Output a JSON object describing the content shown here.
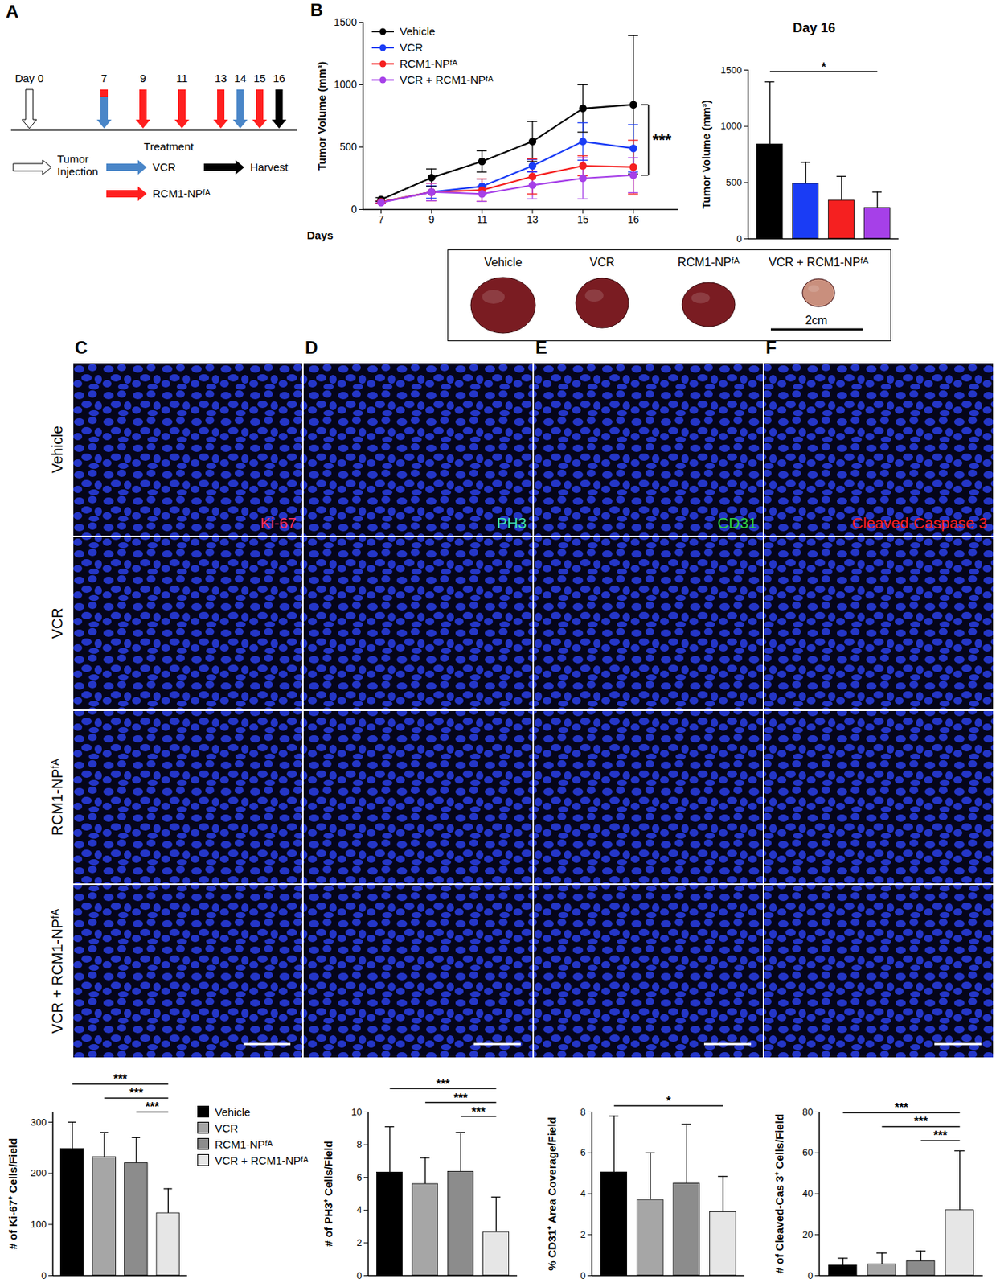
{
  "chart_data": [
    {
      "type": "line",
      "panel": "B",
      "x_label": "Days",
      "y_label": "Tumor Volume (mm³)",
      "categories": [
        7,
        9,
        11,
        13,
        15,
        16
      ],
      "ylim": [
        0,
        1500
      ],
      "yticks": [
        0,
        500,
        1000,
        1500
      ],
      "legend": "top-left",
      "series": [
        {
          "name": "Vehicle",
          "color": "#000000",
          "marker": "circle",
          "values": [
            80,
            255,
            385,
            545,
            810,
            840
          ],
          "errors": [
            15,
            70,
            85,
            160,
            190,
            555
          ]
        },
        {
          "name": "VCR",
          "color": "#1a3cf5",
          "marker": "circle",
          "values": [
            60,
            140,
            185,
            350,
            545,
            490
          ],
          "errors": [
            8,
            50,
            60,
            50,
            150,
            190
          ]
        },
        {
          "name": "RCM1-NPᶠᴬ",
          "color": "#f52020",
          "marker": "circle",
          "values": [
            60,
            140,
            155,
            265,
            350,
            340
          ],
          "errors": [
            8,
            70,
            90,
            140,
            80,
            215
          ]
        },
        {
          "name": "VCR + RCM1-NPᶠᴬ",
          "color": "#a640e8",
          "marker": "circle",
          "values": [
            55,
            140,
            125,
            195,
            250,
            275
          ],
          "errors": [
            8,
            70,
            60,
            110,
            165,
            140
          ]
        }
      ],
      "significance": [
        {
          "from": "Vehicle",
          "to": "VCR + RCM1-NPᶠᴬ",
          "label": "***"
        }
      ]
    },
    {
      "type": "bar",
      "title": "Day 16",
      "y_label": "Tumor Volume (mm³)",
      "categories": [
        "Vehicle",
        "VCR",
        "RCM1-NPᶠᴬ",
        "VCR + RCM1-NPᶠᴬ"
      ],
      "values": [
        840,
        490,
        340,
        275
      ],
      "errors": [
        555,
        190,
        215,
        140
      ],
      "colors": [
        "#000000",
        "#1a3cf5",
        "#f52020",
        "#a640e8"
      ],
      "ylim": [
        0,
        1500
      ],
      "yticks": [
        0,
        500,
        1000,
        1500
      ],
      "tick_labels": "y",
      "significance": [
        {
          "from": "Vehicle",
          "to": "VCR + RCM1-NPᶠᴬ",
          "label": "*"
        }
      ]
    },
    {
      "type": "bar",
      "y_label": "# of Ki-67⁺ Cells/Field",
      "categories": [
        "Vehicle",
        "VCR",
        "RCM1-NPᶠᴬ",
        "VCR + RCM1-NPᶠᴬ"
      ],
      "values": [
        248,
        232,
        220,
        122
      ],
      "errors": [
        52,
        48,
        50,
        48
      ],
      "colors": [
        "#000000",
        "#a6a6a6",
        "#8c8c8c",
        "#e6e6e6"
      ],
      "ylim": [
        0,
        320
      ],
      "yticks": [
        0,
        100,
        200,
        300
      ],
      "tick_labels": "y",
      "legend": "right",
      "significance": [
        {
          "from": "Vehicle",
          "to": "VCR + RCM1-NPᶠᴬ",
          "label": "***"
        },
        {
          "from": "VCR",
          "to": "VCR + RCM1-NPᶠᴬ",
          "label": "***"
        },
        {
          "from": "RCM1-NPᶠᴬ",
          "to": "VCR + RCM1-NPᶠᴬ",
          "label": "***"
        }
      ]
    },
    {
      "type": "bar",
      "y_label": "# of PH3⁺ Cells/Field",
      "categories": [
        "Vehicle",
        "VCR",
        "RCM1-NPᶠᴬ",
        "VCR + RCM1-NPᶠᴬ"
      ],
      "values": [
        6.3,
        5.6,
        6.35,
        2.65
      ],
      "errors": [
        2.8,
        1.6,
        2.4,
        2.15
      ],
      "colors": [
        "#000000",
        "#a6a6a6",
        "#8c8c8c",
        "#e6e6e6"
      ],
      "ylim": [
        0,
        10
      ],
      "yticks": [
        0,
        2,
        4,
        6,
        8,
        10
      ],
      "tick_labels": "y",
      "significance": [
        {
          "from": "Vehicle",
          "to": "VCR + RCM1-NPᶠᴬ",
          "label": "***"
        },
        {
          "from": "VCR",
          "to": "VCR + RCM1-NPᶠᴬ",
          "label": "***"
        },
        {
          "from": "RCM1-NPᶠᴬ",
          "to": "VCR + RCM1-NPᶠᴬ",
          "label": "***"
        }
      ]
    },
    {
      "type": "bar",
      "y_label": "% CD31⁺ Area Coverage/Field",
      "categories": [
        "Vehicle",
        "VCR",
        "RCM1-NPᶠᴬ",
        "VCR + RCM1-NPᶠᴬ"
      ],
      "values": [
        5.05,
        3.7,
        4.5,
        3.1
      ],
      "errors": [
        2.75,
        2.3,
        2.9,
        1.75
      ],
      "colors": [
        "#000000",
        "#a6a6a6",
        "#8c8c8c",
        "#e6e6e6"
      ],
      "ylim": [
        0,
        8
      ],
      "yticks": [
        0,
        2,
        4,
        6,
        8
      ],
      "tick_labels": "y",
      "significance": [
        {
          "from": "Vehicle",
          "to": "VCR + RCM1-NPᶠᴬ",
          "label": "*"
        }
      ]
    },
    {
      "type": "bar",
      "y_label": "# of Cleaved-Cas 3⁺ Cells/Field",
      "categories": [
        "Vehicle",
        "VCR",
        "RCM1-NPᶠᴬ",
        "VCR + RCM1-NPᶠᴬ"
      ],
      "values": [
        5,
        5.5,
        7,
        32
      ],
      "errors": [
        3.5,
        5.5,
        5,
        29
      ],
      "colors": [
        "#000000",
        "#a6a6a6",
        "#8c8c8c",
        "#e6e6e6"
      ],
      "ylim": [
        0,
        80
      ],
      "yticks": [
        0,
        20,
        40,
        60,
        80
      ],
      "tick_labels": "y",
      "significance": [
        {
          "from": "Vehicle",
          "to": "VCR + RCM1-NPᶠᴬ",
          "label": "***"
        },
        {
          "from": "VCR",
          "to": "VCR + RCM1-NPᶠᴬ",
          "label": "***"
        },
        {
          "from": "RCM1-NPᶠᴬ",
          "to": "VCR + RCM1-NPᶠᴬ",
          "label": "***"
        }
      ]
    }
  ],
  "timeline": {
    "panel": "A",
    "heading": "Treatment",
    "day_labels": [
      {
        "value": 0,
        "label": "Day 0"
      },
      7,
      9,
      11,
      13,
      14,
      15,
      16
    ],
    "events": [
      {
        "name": "Tumor Injection",
        "color": "#ffffff",
        "days": [
          0
        ]
      },
      {
        "name": "VCR",
        "color": "#4a86c8",
        "days": [
          7,
          14
        ]
      },
      {
        "name": "RCM1-NPᶠᴬ",
        "color": "#ff2020",
        "days": [
          7,
          9,
          11,
          13,
          15
        ]
      },
      {
        "name": "Harvest",
        "color": "#000000",
        "days": [
          16
        ]
      }
    ]
  },
  "photo": {
    "labels": [
      "Vehicle",
      "VCR",
      "RCM1-NPᶠᴬ",
      "VCR + RCM1-NPᶠᴬ"
    ],
    "scale_bar": "2cm"
  },
  "micrographs": {
    "panels": [
      "C",
      "D",
      "E",
      "F"
    ],
    "rows": [
      "Vehicle",
      "VCR",
      "RCM1-NPᶠᴬ",
      "VCR + RCM1-NPᶠᴬ"
    ],
    "stains": [
      {
        "name": "Ki-67",
        "color": "#ff3060"
      },
      {
        "name": "PH3",
        "color": "#40e0b0"
      },
      {
        "name": "CD31",
        "color": "#30d040"
      },
      {
        "name": "Cleaved-Caspase 3",
        "color": "#ff2020"
      }
    ]
  }
}
